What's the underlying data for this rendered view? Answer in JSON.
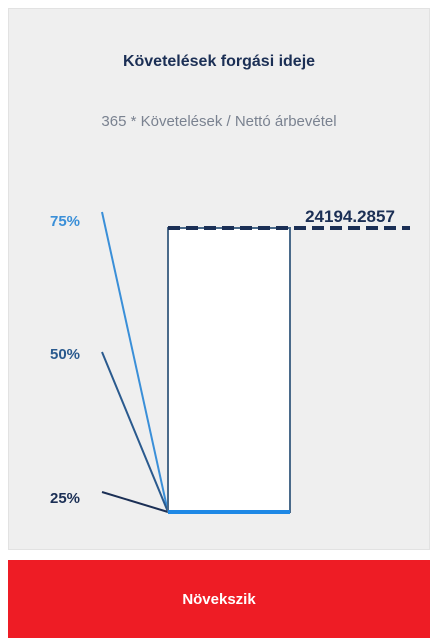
{
  "card": {
    "title": "Követelések forgási ideje",
    "formula": "365 * Követelések / Nettó árbevétel",
    "value": "24194.2857",
    "levels": [
      "75%",
      "50%",
      "25%"
    ]
  },
  "button": {
    "label": "Növekszik"
  }
}
